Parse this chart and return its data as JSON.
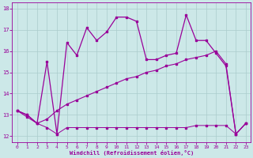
{
  "xlabel": "Windchill (Refroidissement éolien,°C)",
  "bg_color": "#cce8e8",
  "grid_color": "#aacccc",
  "line_color": "#990099",
  "xlim": [
    -0.5,
    23.5
  ],
  "ylim": [
    11.7,
    18.3
  ],
  "yticks": [
    12,
    13,
    14,
    15,
    16,
    17,
    18
  ],
  "xticks": [
    0,
    1,
    2,
    3,
    4,
    5,
    6,
    7,
    8,
    9,
    10,
    11,
    12,
    13,
    14,
    15,
    16,
    17,
    18,
    19,
    20,
    21,
    22,
    23
  ],
  "line1_x": [
    0,
    1,
    2,
    3,
    4,
    5,
    6,
    7,
    8,
    9,
    10,
    11,
    12,
    13,
    14,
    15,
    16,
    17,
    18,
    19,
    20,
    21,
    22,
    23
  ],
  "line1_y": [
    13.2,
    13.0,
    12.6,
    12.4,
    12.1,
    12.4,
    12.4,
    12.4,
    12.4,
    12.4,
    12.4,
    12.4,
    12.4,
    12.4,
    12.4,
    12.4,
    12.4,
    12.4,
    12.5,
    12.5,
    12.5,
    12.5,
    12.1,
    12.6
  ],
  "line2_x": [
    0,
    1,
    2,
    3,
    4,
    5,
    6,
    7,
    8,
    9,
    10,
    11,
    12,
    13,
    14,
    15,
    16,
    17,
    18,
    19,
    20,
    21,
    22,
    23
  ],
  "line2_y": [
    13.2,
    13.0,
    12.6,
    15.5,
    12.1,
    16.4,
    15.8,
    17.1,
    16.5,
    16.9,
    17.6,
    17.6,
    17.4,
    15.6,
    15.6,
    15.8,
    15.9,
    17.7,
    16.5,
    16.5,
    15.9,
    15.3,
    12.1,
    12.6
  ],
  "line3_x": [
    0,
    1,
    2,
    3,
    4,
    5,
    6,
    7,
    8,
    9,
    10,
    11,
    12,
    13,
    14,
    15,
    16,
    17,
    18,
    19,
    20,
    21,
    22,
    23
  ],
  "line3_y": [
    13.2,
    12.9,
    12.6,
    12.8,
    13.2,
    13.5,
    13.7,
    13.9,
    14.1,
    14.3,
    14.5,
    14.7,
    14.8,
    15.0,
    15.1,
    15.3,
    15.4,
    15.6,
    15.7,
    15.8,
    16.0,
    15.4,
    12.1,
    12.6
  ],
  "lw1": 0.7,
  "lw2": 0.9,
  "lw3": 0.8,
  "ms": 2.0
}
